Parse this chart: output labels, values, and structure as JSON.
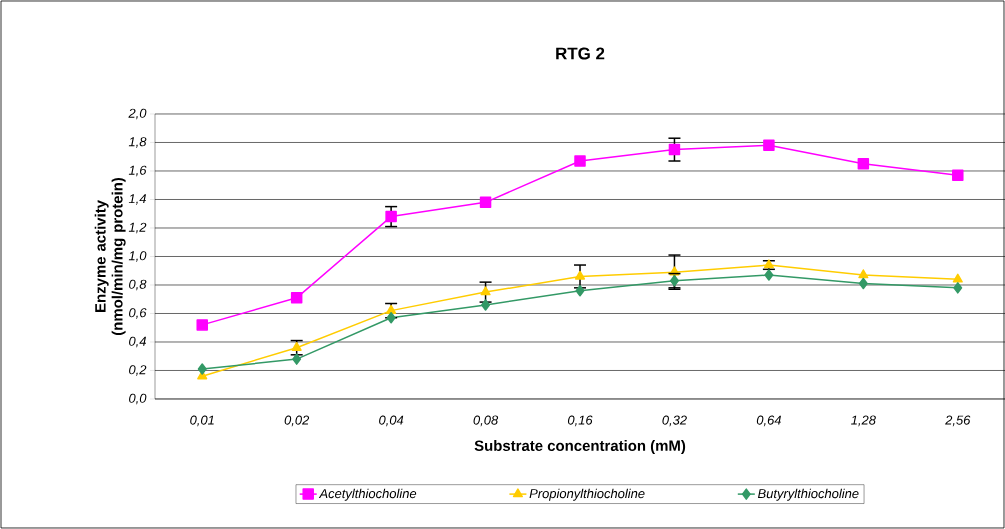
{
  "chart_data": {
    "type": "line",
    "title": "RTG 2",
    "xlabel": "Substrate concentration (mM)",
    "ylabel": "Enzyme activity (nmol/min/mg protein)",
    "categories": [
      "0,01",
      "0,02",
      "0,04",
      "0,08",
      "0,16",
      "0,32",
      "0,64",
      "1,28",
      "2,56"
    ],
    "series": [
      {
        "name": "Acetylthiocholine",
        "color": "#ff00ff",
        "marker": "square",
        "values": [
          0.52,
          0.71,
          1.28,
          1.38,
          1.67,
          1.75,
          1.78,
          1.65,
          1.57
        ],
        "errors": [
          null,
          null,
          0.07,
          null,
          null,
          0.08,
          null,
          null,
          null
        ]
      },
      {
        "name": "Propionylthiocholine",
        "color": "#ffcc00",
        "marker": "triangle",
        "values": [
          0.16,
          0.36,
          0.62,
          0.75,
          0.86,
          0.89,
          0.94,
          0.87,
          0.84
        ],
        "errors": [
          null,
          0.05,
          0.05,
          0.07,
          0.08,
          0.12,
          0.03,
          null,
          null
        ]
      },
      {
        "name": "Butyrylthiocholine",
        "color": "#339966",
        "marker": "diamond",
        "values": [
          0.21,
          0.28,
          0.57,
          0.66,
          0.76,
          0.83,
          0.87,
          0.81,
          0.78
        ],
        "errors": [
          null,
          null,
          null,
          null,
          null,
          0.05,
          null,
          null,
          null
        ]
      }
    ],
    "ylim": [
      0,
      2.0
    ],
    "yticks": [
      {
        "value": 0,
        "label": "0,0"
      },
      {
        "value": 0.2,
        "label": "0,2"
      },
      {
        "value": 0.4,
        "label": "0,4"
      },
      {
        "value": 0.6,
        "label": "0,6"
      },
      {
        "value": 0.8,
        "label": "0,8"
      },
      {
        "value": 1.0,
        "label": "1,0"
      },
      {
        "value": 1.2,
        "label": "1,2"
      },
      {
        "value": 1.4,
        "label": "1,4"
      },
      {
        "value": 1.6,
        "label": "1,6"
      },
      {
        "value": 1.8,
        "label": "1,8"
      },
      {
        "value": 2.0,
        "label": "2,0"
      }
    ],
    "grid": "y",
    "legend": "bottom"
  }
}
